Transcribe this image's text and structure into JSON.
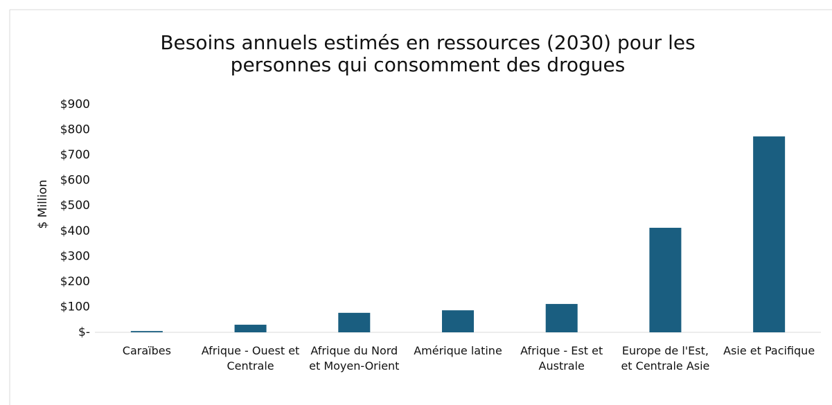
{
  "chart_data": {
    "type": "bar",
    "title": "Besoins annuels estimés en ressources (2030) pour les personnes qui consomment des drogues",
    "y_label": "$ Million",
    "categories": [
      "Caraïbes",
      "Afrique - Ouest et Centrale",
      "Afrique du Nord et Moyen-Orient",
      "Amérique latine",
      "Afrique - Est et Australe",
      "Europe de l'Est, et Centrale Asie",
      "Asie et Pacifique"
    ],
    "values": [
      5,
      30,
      77,
      87,
      112,
      413,
      774
    ],
    "color": "#1a5e80",
    "ylim": [
      0,
      900
    ],
    "yticks": [
      {
        "value": 0,
        "label": "$-"
      },
      {
        "value": 100,
        "label": "$100"
      },
      {
        "value": 200,
        "label": "$200"
      },
      {
        "value": 300,
        "label": "$300"
      },
      {
        "value": 400,
        "label": "$400"
      },
      {
        "value": 500,
        "label": "$500"
      },
      {
        "value": 600,
        "label": "$600"
      },
      {
        "value": 700,
        "label": "$700"
      },
      {
        "value": 800,
        "label": "$800"
      },
      {
        "value": 900,
        "label": "$900"
      }
    ],
    "grid": false
  }
}
